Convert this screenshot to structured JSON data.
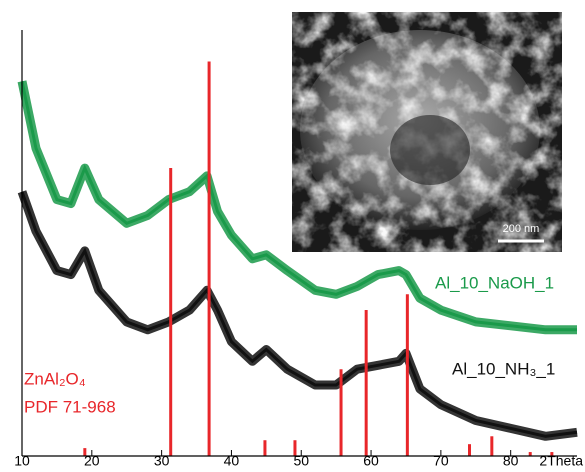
{
  "chart_data": {
    "type": "line",
    "xlabel": "2Theta",
    "xlim": [
      10,
      89.5
    ],
    "xticks": [
      10,
      20,
      30,
      40,
      50,
      60,
      70,
      80
    ],
    "ylim": [
      0,
      108
    ],
    "x": [
      10,
      12,
      15,
      17,
      19,
      21,
      25,
      28,
      31,
      34,
      36.5,
      38,
      40,
      43,
      45,
      48,
      52,
      55,
      58,
      61,
      64,
      65,
      67,
      70,
      75,
      80,
      85,
      89.5
    ],
    "series": [
      {
        "name": "Al_10_NaOH_1",
        "color": "#1a9a4a",
        "values": [
          95,
          78,
          65,
          64,
          73,
          65,
          59,
          61,
          65,
          67,
          71,
          62,
          56,
          50,
          51,
          47,
          42,
          41,
          43,
          46,
          47,
          46,
          40,
          37,
          34,
          33,
          32,
          32
        ]
      },
      {
        "name": "Al_10_NH₃_1",
        "color": "#111111",
        "values": [
          67,
          57,
          47,
          46,
          52,
          42,
          34,
          32,
          34,
          37,
          42,
          37,
          29,
          24,
          27,
          22,
          18,
          18,
          22,
          23,
          24,
          26,
          17,
          13,
          9,
          7,
          5,
          6
        ]
      }
    ],
    "reference": {
      "label": [
        "ZnAl₂O₄",
        "PDF 71-968"
      ],
      "color": "#e8262a",
      "x": [
        19.0,
        31.3,
        36.8,
        44.8,
        49.1,
        55.7,
        59.3,
        65.2,
        74.1,
        77.3,
        82.8,
        85.9
      ],
      "values": [
        2,
        73,
        100,
        4,
        4,
        22,
        37,
        41,
        3,
        5,
        1,
        1
      ]
    },
    "inset": {
      "scale_bar": "200 nm"
    }
  }
}
